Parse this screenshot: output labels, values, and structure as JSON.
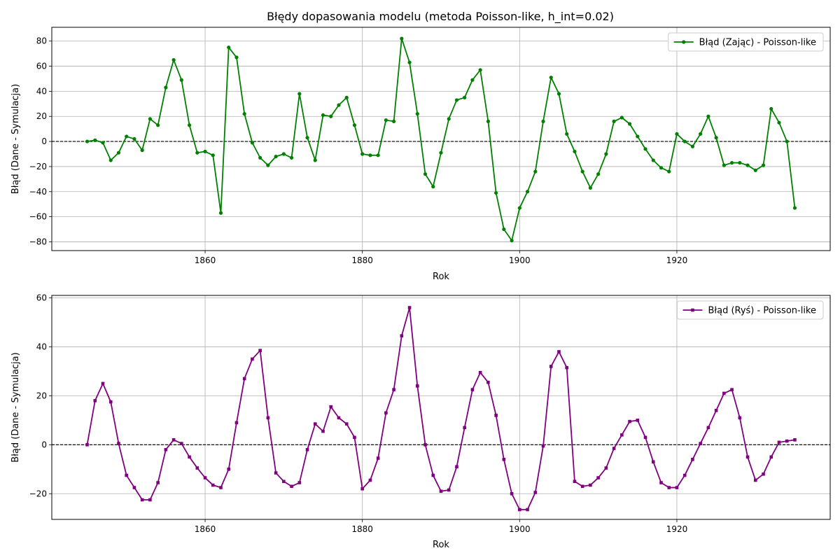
{
  "figure": {
    "title": "Błędy dopasowania modelu (metoda Poisson-like, h_int=0.02)"
  },
  "chart_data": [
    {
      "type": "line",
      "xlabel": "Rok",
      "ylabel": "Błąd (Dane - Symulacja)",
      "xlim": [
        1840.5,
        1939.5
      ],
      "ylim": [
        -87,
        91
      ],
      "x_ticks": [
        1860,
        1880,
        1900,
        1920
      ],
      "y_ticks": [
        -80,
        -60,
        -40,
        -20,
        0,
        20,
        40,
        60,
        80
      ],
      "grid": true,
      "legend_position": "top-right",
      "reference_line": {
        "y": 0,
        "style": "dashed",
        "color": "#000000"
      },
      "series": [
        {
          "name": "Błąd (Zając) - Poisson-like",
          "color": "#008000",
          "marker": "circle",
          "x": [
            1845,
            1846,
            1847,
            1848,
            1849,
            1850,
            1851,
            1852,
            1853,
            1854,
            1855,
            1856,
            1857,
            1858,
            1859,
            1860,
            1861,
            1862,
            1863,
            1864,
            1865,
            1866,
            1867,
            1868,
            1869,
            1870,
            1871,
            1872,
            1873,
            1874,
            1875,
            1876,
            1877,
            1878,
            1879,
            1880,
            1881,
            1882,
            1883,
            1884,
            1885,
            1886,
            1887,
            1888,
            1889,
            1890,
            1891,
            1892,
            1893,
            1894,
            1895,
            1896,
            1897,
            1898,
            1899,
            1900,
            1901,
            1902,
            1903,
            1904,
            1905,
            1906,
            1907,
            1908,
            1909,
            1910,
            1911,
            1912,
            1913,
            1914,
            1915,
            1916,
            1917,
            1918,
            1919,
            1920,
            1921,
            1922,
            1923,
            1924,
            1925,
            1926,
            1927,
            1928,
            1929,
            1930,
            1931,
            1932,
            1933,
            1934,
            1935
          ],
          "values": [
            0,
            1,
            -1,
            -15,
            -9,
            4,
            2,
            -7,
            18,
            13,
            43,
            65,
            49,
            13,
            -9,
            -8,
            -11,
            -57,
            75,
            67,
            22,
            -1,
            -13,
            -19,
            -12,
            -10,
            -13,
            38,
            3,
            -15,
            21,
            20,
            29,
            35,
            13,
            -10,
            -11,
            -11,
            17,
            16,
            82,
            63,
            22,
            -26,
            -36,
            -9,
            18,
            33,
            35,
            49,
            57,
            16,
            -41,
            -70,
            -79,
            -53,
            -40,
            -24,
            16,
            51,
            38,
            6,
            -8,
            -24,
            -37,
            -26,
            -10,
            16,
            19,
            14,
            4,
            -6,
            -15,
            -21,
            -24,
            6,
            0,
            -4,
            6,
            20,
            3,
            -19,
            -17,
            -17,
            -19,
            -23,
            -19,
            26,
            15,
            0,
            -53
          ]
        }
      ]
    },
    {
      "type": "line",
      "xlabel": "Rok",
      "ylabel": "Błąd (Dane - Symulacja)",
      "xlim": [
        1840.5,
        1939.5
      ],
      "ylim": [
        -30.5,
        61
      ],
      "x_ticks": [
        1860,
        1880,
        1900,
        1920
      ],
      "y_ticks": [
        -20,
        0,
        20,
        40,
        60
      ],
      "grid": true,
      "legend_position": "top-right",
      "reference_line": {
        "y": 0,
        "style": "dashed",
        "color": "#000000"
      },
      "series": [
        {
          "name": "Błąd (Ryś) - Poisson-like",
          "color": "#800080",
          "marker": "square",
          "x": [
            1845,
            1846,
            1847,
            1848,
            1849,
            1850,
            1851,
            1852,
            1853,
            1854,
            1855,
            1856,
            1857,
            1858,
            1859,
            1860,
            1861,
            1862,
            1863,
            1864,
            1865,
            1866,
            1867,
            1868,
            1869,
            1870,
            1871,
            1872,
            1873,
            1874,
            1875,
            1876,
            1877,
            1878,
            1879,
            1880,
            1881,
            1882,
            1883,
            1884,
            1885,
            1886,
            1887,
            1888,
            1889,
            1890,
            1891,
            1892,
            1893,
            1894,
            1895,
            1896,
            1897,
            1898,
            1899,
            1900,
            1901,
            1902,
            1903,
            1904,
            1905,
            1906,
            1907,
            1908,
            1909,
            1910,
            1911,
            1912,
            1913,
            1914,
            1915,
            1916,
            1917,
            1918,
            1919,
            1920,
            1921,
            1922,
            1923,
            1924,
            1925,
            1926,
            1927,
            1928,
            1929,
            1930,
            1931,
            1932,
            1933,
            1934,
            1935
          ],
          "values": [
            0,
            18,
            25,
            17.5,
            0.5,
            -12.5,
            -17.5,
            -22.5,
            -22.5,
            -15.5,
            -2,
            2,
            0.5,
            -5,
            -9.5,
            -13.5,
            -16.5,
            -17.5,
            -10,
            9,
            27,
            35,
            38.5,
            11,
            -11.5,
            -15,
            -17,
            -15.5,
            -2,
            8.5,
            5.5,
            15.5,
            11,
            8.5,
            3,
            -18,
            -14.5,
            -5.5,
            13,
            22.5,
            44.5,
            56,
            24,
            0,
            -12.5,
            -19,
            -18.5,
            -9,
            7,
            22.5,
            29.5,
            25.5,
            12,
            -6,
            -20,
            -26.5,
            -26.5,
            -19.5,
            -0.5,
            32,
            38,
            31.5,
            -15,
            -17,
            -16.5,
            -13.5,
            -9.5,
            -1.5,
            4,
            9.5,
            10,
            3,
            -7,
            -15.5,
            -17.5,
            -17.5,
            -12.5,
            -6,
            0.5,
            7,
            14,
            21,
            22.5,
            11,
            -5,
            -14.5,
            -12,
            -5,
            1,
            1.5,
            2
          ]
        }
      ]
    }
  ]
}
